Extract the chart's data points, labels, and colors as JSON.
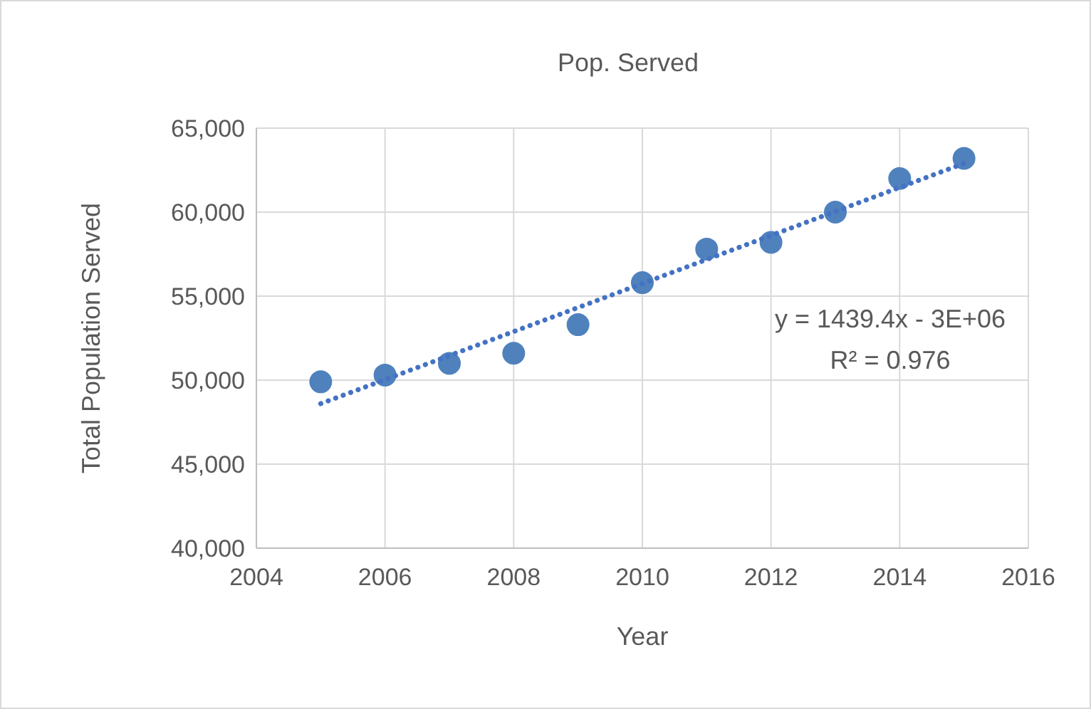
{
  "chart_data": {
    "type": "scatter",
    "title": "Pop. Served",
    "xlabel": "Year",
    "ylabel": "Total Population Served",
    "xlim": [
      2004,
      2016
    ],
    "xticks": [
      2004,
      2006,
      2008,
      2010,
      2012,
      2014,
      2016
    ],
    "ylim": [
      40000,
      65000
    ],
    "yticks": [
      {
        "value": 40000,
        "label": "40,000"
      },
      {
        "value": 45000,
        "label": "45,000"
      },
      {
        "value": 50000,
        "label": "50,000"
      },
      {
        "value": 55000,
        "label": "55,000"
      },
      {
        "value": 60000,
        "label": "60,000"
      },
      {
        "value": 65000,
        "label": "65,000"
      }
    ],
    "grid": true,
    "marker": "circle",
    "x": [
      2005,
      2006,
      2007,
      2008,
      2009,
      2010,
      2011,
      2012,
      2013,
      2014,
      2015
    ],
    "series": [
      {
        "color": "#4f81bd",
        "values": [
          49900,
          50300,
          51000,
          51600,
          53300,
          55800,
          57800,
          58200,
          60000,
          62000,
          63200
        ]
      },
      {
        "type": "line",
        "color": "#4472c4",
        "line_style": "dotted",
        "marker": "none",
        "x": [
          2005,
          2015
        ],
        "values": [
          48600,
          62900
        ]
      }
    ],
    "annotations": [
      "y = 1439.4x - 3E+06",
      "R² = 0.976"
    ]
  }
}
